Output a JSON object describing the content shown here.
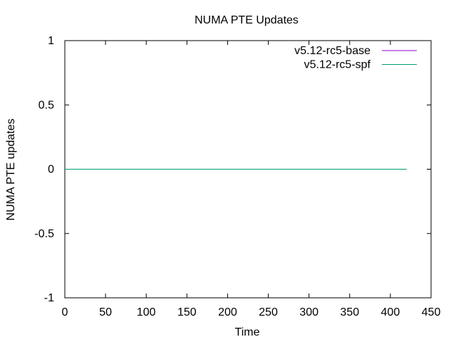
{
  "chart_data": {
    "type": "line",
    "title": "NUMA PTE Updates",
    "xlabel": "Time",
    "ylabel": "NUMA PTE updates",
    "xlim": [
      0,
      450
    ],
    "ylim": [
      -1,
      1
    ],
    "x_ticks": [
      0,
      50,
      100,
      150,
      200,
      250,
      300,
      350,
      400,
      450
    ],
    "y_ticks": [
      -1,
      -0.5,
      0,
      0.5,
      1
    ],
    "x_tick_labels": [
      "0",
      "50",
      "100",
      "150",
      "200",
      "250",
      "300",
      "350",
      "400",
      "450"
    ],
    "y_tick_labels": [
      "-1",
      "-0.5",
      "0",
      "0.5",
      "1"
    ],
    "grid": false,
    "legend_position": "top-right",
    "series": [
      {
        "name": "v5.12-rc5-base",
        "color": "#9400d3",
        "x": [
          0,
          420
        ],
        "y": [
          0,
          0
        ]
      },
      {
        "name": "v5.12-rc5-spf",
        "color": "#009e73",
        "x": [
          0,
          420
        ],
        "y": [
          0,
          0
        ]
      }
    ]
  }
}
